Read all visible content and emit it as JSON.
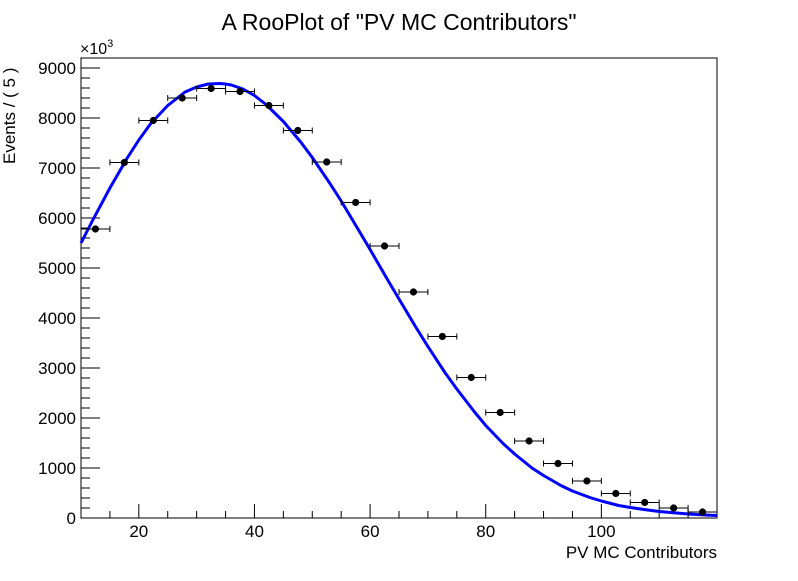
{
  "chart_data": {
    "type": "scatter",
    "title": "A RooPlot of \"PV MC Contributors\"",
    "xlabel": "PV MC Contributors",
    "ylabel": "Events / ( 5 )",
    "y_multiplier_label": "×10",
    "y_multiplier_exponent": "3",
    "xlim": [
      10,
      120
    ],
    "ylim": [
      0,
      9200
    ],
    "x_ticks": [
      20,
      40,
      60,
      80,
      100
    ],
    "y_ticks": [
      0,
      1000,
      2000,
      3000,
      4000,
      5000,
      6000,
      7000,
      8000,
      9000
    ],
    "x_tick_labels": [
      "20",
      "40",
      "60",
      "80",
      "100"
    ],
    "y_tick_labels": [
      "0",
      "1000",
      "2000",
      "3000",
      "4000",
      "5000",
      "6000",
      "7000",
      "8000",
      "9000"
    ],
    "bin_width": 5,
    "grid": false,
    "series": [
      {
        "type": "points_with_xerr",
        "color": "#000000",
        "x": [
          12.5,
          17.5,
          22.5,
          27.5,
          32.5,
          37.5,
          42.5,
          47.5,
          52.5,
          57.5,
          62.5,
          67.5,
          72.5,
          77.5,
          82.5,
          87.5,
          92.5,
          97.5,
          102.5,
          107.5,
          112.5,
          117.5
        ],
        "y": [
          5780,
          7110,
          7950,
          8400,
          8590,
          8530,
          8250,
          7750,
          7120,
          6310,
          5440,
          4520,
          3630,
          2810,
          2110,
          1540,
          1090,
          740,
          490,
          310,
          200,
          120
        ]
      },
      {
        "type": "line",
        "color": "#0000ff",
        "x": [
          10,
          12,
          15,
          18,
          20,
          22,
          25,
          28,
          30,
          32,
          34,
          35,
          36,
          38,
          40,
          42,
          45,
          48,
          50,
          53,
          55,
          58,
          60,
          63,
          65,
          68,
          70,
          73,
          75,
          78,
          80,
          83,
          85,
          88,
          90,
          93,
          95,
          98,
          100,
          103,
          105,
          108,
          110,
          113,
          115,
          118,
          120
        ],
        "y": [
          5500,
          5950,
          6600,
          7200,
          7560,
          7880,
          8250,
          8520,
          8620,
          8680,
          8690,
          8680,
          8660,
          8580,
          8450,
          8270,
          7930,
          7520,
          7210,
          6700,
          6340,
          5760,
          5370,
          4770,
          4380,
          3800,
          3430,
          2900,
          2580,
          2130,
          1850,
          1490,
          1280,
          1000,
          850,
          650,
          540,
          410,
          340,
          250,
          210,
          160,
          130,
          100,
          80,
          60,
          50
        ]
      }
    ]
  }
}
